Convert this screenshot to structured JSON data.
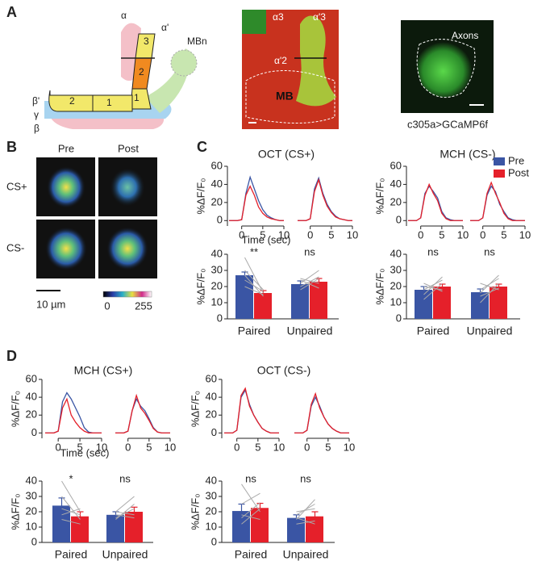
{
  "figure": {
    "panel_labels": [
      "A",
      "B",
      "C",
      "D"
    ],
    "schematic": {
      "labels": [
        "α",
        "α'",
        "MBn",
        "β'",
        "γ",
        "β"
      ],
      "compartments": [
        "3",
        "2",
        "2",
        "1",
        "1"
      ]
    },
    "micrograph": {
      "labels": [
        "α3",
        "α'3",
        "α'2",
        "MB"
      ]
    },
    "axon_image": {
      "label": "Axons",
      "genotype": "c305a>GCaMP6f"
    },
    "imaging": {
      "columns": [
        "Pre",
        "Post"
      ],
      "rows": [
        "CS+",
        "CS-"
      ],
      "scale_bar": "10 µm",
      "colorbar": [
        "0",
        "255"
      ]
    }
  },
  "chart_data": [
    {
      "type": "line",
      "title": "OCT (CS+)",
      "ylabel": "%ΔF/F₀",
      "xlabel": "Time (sec)",
      "x": [
        -3,
        -2,
        -1,
        0,
        1,
        2,
        3,
        4,
        5,
        6,
        7,
        8,
        9,
        10
      ],
      "series": [
        {
          "color": "#3a55a4",
          "values": [
            0,
            0,
            0,
            1,
            30,
            48,
            35,
            22,
            12,
            6,
            3,
            1,
            0,
            0
          ]
        },
        {
          "color": "#e5202a",
          "values": [
            0,
            0,
            0,
            1,
            28,
            38,
            28,
            15,
            8,
            4,
            2,
            1,
            0,
            0
          ]
        }
      ],
      "xlim": [
        -3,
        10
      ],
      "xticks": [
        0,
        5,
        10
      ],
      "ylim": [
        -6,
        60
      ],
      "yticks": [
        0,
        20,
        40,
        60
      ]
    },
    {
      "type": "line",
      "x": [
        -3,
        -2,
        -1,
        0,
        1,
        2,
        3,
        4,
        5,
        6,
        7,
        8,
        9,
        10
      ],
      "series": [
        {
          "color": "#3a55a4",
          "values": [
            0,
            0,
            0,
            2,
            35,
            47,
            30,
            18,
            10,
            5,
            2,
            1,
            0,
            0
          ]
        },
        {
          "color": "#e5202a",
          "values": [
            0,
            0,
            0,
            2,
            32,
            45,
            28,
            16,
            9,
            4,
            2,
            1,
            0,
            0
          ]
        }
      ],
      "xlim": [
        -3,
        10
      ],
      "xticks": [
        0,
        5,
        10
      ],
      "ylim": [
        -6,
        60
      ]
    },
    {
      "type": "line",
      "title": "MCH (CS-)",
      "ylabel": "%ΔF/F₀",
      "x": [
        -3,
        -2,
        -1,
        0,
        1,
        2,
        3,
        4,
        5,
        6,
        7,
        8,
        9,
        10
      ],
      "series": [
        {
          "name": "Pre",
          "color": "#3a55a4",
          "values": [
            0,
            0,
            0,
            3,
            30,
            38,
            32,
            25,
            10,
            3,
            1,
            0,
            0,
            0
          ]
        },
        {
          "name": "Post",
          "color": "#e5202a",
          "values": [
            0,
            0,
            0,
            3,
            28,
            40,
            30,
            22,
            8,
            2,
            0,
            0,
            0,
            0
          ]
        }
      ],
      "xlim": [
        -3,
        10
      ],
      "xticks": [
        0,
        5,
        10
      ],
      "ylim": [
        -6,
        60
      ],
      "yticks": [
        0,
        20,
        40,
        60
      ]
    },
    {
      "type": "line",
      "x": [
        -3,
        -2,
        -1,
        0,
        1,
        2,
        3,
        4,
        5,
        6,
        7,
        8,
        9,
        10
      ],
      "series": [
        {
          "color": "#3a55a4",
          "values": [
            0,
            0,
            0,
            3,
            28,
            38,
            32,
            18,
            10,
            3,
            1,
            0,
            0,
            0
          ]
        },
        {
          "color": "#e5202a",
          "values": [
            0,
            0,
            0,
            3,
            30,
            42,
            30,
            20,
            8,
            2,
            0,
            0,
            0,
            0
          ]
        }
      ],
      "xlim": [
        -3,
        10
      ],
      "xticks": [
        0,
        5,
        10
      ],
      "ylim": [
        -6,
        60
      ]
    },
    {
      "type": "bar",
      "ylabel": "%ΔF/F₀",
      "categories": [
        "Paired",
        "Unpaired"
      ],
      "series": [
        {
          "color": "#3a55a4",
          "values": [
            27,
            21.5
          ],
          "errors": [
            2,
            2
          ]
        },
        {
          "color": "#e5202a",
          "values": [
            16,
            23
          ],
          "errors": [
            1.5,
            2
          ]
        }
      ],
      "individual": [
        [
          [
            38,
            16
          ],
          [
            30,
            18
          ],
          [
            27,
            14
          ],
          [
            24,
            17
          ],
          [
            20,
            15
          ]
        ],
        [
          [
            22,
            30
          ],
          [
            18,
            25
          ],
          [
            25,
            22
          ],
          [
            20,
            26
          ],
          [
            24,
            19
          ]
        ]
      ],
      "annotations": [
        "**",
        "ns"
      ],
      "ylim": [
        0,
        40
      ],
      "yticks": [
        0,
        10,
        20,
        30,
        40
      ]
    },
    {
      "type": "bar",
      "ylabel": "%ΔF/F₀",
      "categories": [
        "Paired",
        "Unpaired"
      ],
      "series": [
        {
          "color": "#3a55a4",
          "values": [
            18,
            16.5
          ],
          "errors": [
            2,
            2
          ]
        },
        {
          "color": "#e5202a",
          "values": [
            20,
            20
          ],
          "errors": [
            1.5,
            1.5
          ]
        }
      ],
      "individual": [
        [
          [
            15,
            26
          ],
          [
            20,
            18
          ],
          [
            12,
            22
          ],
          [
            22,
            17
          ],
          [
            18,
            24
          ]
        ],
        [
          [
            10,
            22
          ],
          [
            18,
            25
          ],
          [
            14,
            19
          ],
          [
            22,
            18
          ],
          [
            16,
            27
          ]
        ]
      ],
      "annotations": [
        "ns",
        "ns"
      ],
      "ylim": [
        0,
        40
      ],
      "yticks": [
        0,
        10,
        20,
        30,
        40
      ]
    },
    {
      "type": "line",
      "title": "MCH (CS+)",
      "ylabel": "%ΔF/F₀",
      "xlabel": "Time (sec)",
      "x": [
        -3,
        -2,
        -1,
        0,
        1,
        2,
        3,
        4,
        5,
        6,
        7,
        8,
        9,
        10
      ],
      "series": [
        {
          "color": "#3a55a4",
          "values": [
            0,
            0,
            0,
            2,
            35,
            45,
            38,
            28,
            18,
            6,
            1,
            0,
            0,
            0
          ]
        },
        {
          "color": "#e5202a",
          "values": [
            0,
            0,
            0,
            2,
            28,
            38,
            20,
            12,
            6,
            2,
            0,
            0,
            0,
            0
          ]
        }
      ],
      "xlim": [
        -3,
        10
      ],
      "xticks": [
        0,
        5,
        10
      ],
      "ylim": [
        -6,
        60
      ],
      "yticks": [
        0,
        20,
        40,
        60
      ]
    },
    {
      "type": "line",
      "x": [
        -3,
        -2,
        -1,
        0,
        1,
        2,
        3,
        4,
        5,
        6,
        7,
        8,
        9,
        10
      ],
      "series": [
        {
          "color": "#3a55a4",
          "values": [
            0,
            0,
            0,
            2,
            25,
            38,
            30,
            25,
            16,
            6,
            1,
            0,
            0,
            0
          ]
        },
        {
          "color": "#e5202a",
          "values": [
            0,
            0,
            0,
            2,
            25,
            42,
            28,
            22,
            14,
            5,
            1,
            0,
            0,
            0
          ]
        }
      ],
      "xlim": [
        -3,
        10
      ],
      "xticks": [
        0,
        5,
        10
      ],
      "ylim": [
        -6,
        60
      ]
    },
    {
      "type": "line",
      "title": "OCT (CS-)",
      "ylabel": "%ΔF/F₀",
      "x": [
        -3,
        -2,
        -1,
        0,
        1,
        2,
        3,
        4,
        5,
        6,
        7,
        8,
        9,
        10
      ],
      "series": [
        {
          "color": "#3a55a4",
          "values": [
            0,
            0,
            0,
            3,
            40,
            48,
            32,
            20,
            12,
            5,
            2,
            0,
            0,
            0
          ]
        },
        {
          "color": "#e5202a",
          "values": [
            0,
            0,
            0,
            3,
            42,
            50,
            30,
            20,
            12,
            5,
            2,
            0,
            0,
            0
          ]
        }
      ],
      "xlim": [
        -3,
        10
      ],
      "xticks": [
        0,
        5,
        10
      ],
      "ylim": [
        -6,
        60
      ],
      "yticks": [
        0,
        20,
        40,
        60
      ]
    },
    {
      "type": "line",
      "x": [
        -3,
        -2,
        -1,
        0,
        1,
        2,
        3,
        4,
        5,
        6,
        7,
        8,
        9,
        10
      ],
      "series": [
        {
          "color": "#3a55a4",
          "values": [
            0,
            0,
            0,
            3,
            30,
            40,
            30,
            18,
            10,
            5,
            2,
            0,
            0,
            0
          ]
        },
        {
          "color": "#e5202a",
          "values": [
            0,
            0,
            0,
            3,
            32,
            44,
            28,
            18,
            10,
            5,
            2,
            0,
            0,
            0
          ]
        }
      ],
      "xlim": [
        -3,
        10
      ],
      "xticks": [
        0,
        5,
        10
      ],
      "ylim": [
        -6,
        60
      ]
    },
    {
      "type": "bar",
      "ylabel": "%ΔF/F₀",
      "categories": [
        "Paired",
        "Unpaired"
      ],
      "series": [
        {
          "color": "#3a55a4",
          "values": [
            24,
            18
          ],
          "errors": [
            5,
            2
          ]
        },
        {
          "color": "#e5202a",
          "values": [
            17,
            20
          ],
          "errors": [
            3,
            3
          ]
        }
      ],
      "individual": [
        [
          [
            40,
            20
          ],
          [
            30,
            15
          ],
          [
            22,
            18
          ],
          [
            15,
            12
          ],
          [
            18,
            22
          ]
        ],
        [
          [
            15,
            25
          ],
          [
            20,
            30
          ],
          [
            18,
            16
          ],
          [
            16,
            22
          ],
          [
            20,
            18
          ]
        ]
      ],
      "annotations": [
        "*",
        "ns"
      ],
      "ylim": [
        0,
        40
      ],
      "yticks": [
        0,
        10,
        20,
        30,
        40
      ]
    },
    {
      "type": "bar",
      "ylabel": "%ΔF/F₀",
      "categories": [
        "Paired",
        "Unpaired"
      ],
      "series": [
        {
          "color": "#3a55a4",
          "values": [
            20.5,
            16
          ],
          "errors": [
            4.5,
            2
          ]
        },
        {
          "color": "#e5202a",
          "values": [
            22.5,
            17
          ],
          "errors": [
            3,
            3
          ]
        }
      ],
      "individual": [
        [
          [
            38,
            20
          ],
          [
            25,
            32
          ],
          [
            12,
            22
          ],
          [
            18,
            15
          ],
          [
            16,
            26
          ]
        ],
        [
          [
            15,
            28
          ],
          [
            20,
            22
          ],
          [
            12,
            14
          ],
          [
            18,
            25
          ],
          [
            16,
            12
          ]
        ]
      ],
      "annotations": [
        "ns",
        "ns"
      ],
      "ylim": [
        0,
        40
      ],
      "yticks": [
        0,
        10,
        20,
        30,
        40
      ]
    }
  ]
}
